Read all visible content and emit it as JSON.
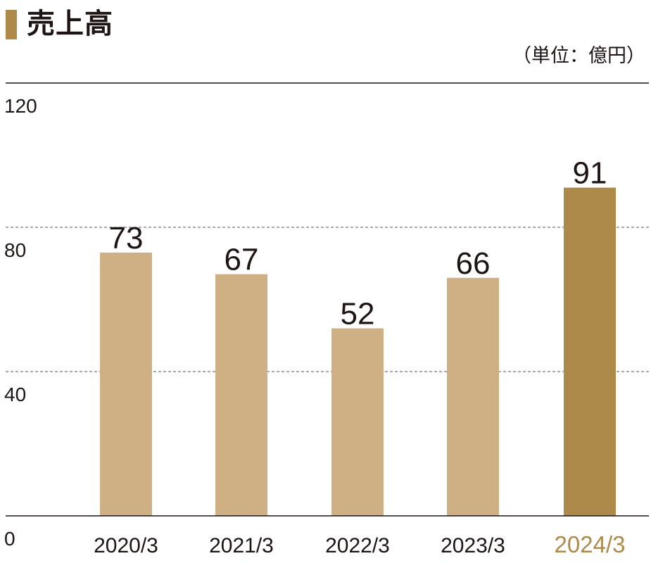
{
  "title": "売上高",
  "unit": "（単位：億円）",
  "colors": {
    "accent": "#ad8a4a",
    "bar": "#cfb084",
    "highlight_bar": "#ad8a4a",
    "text": "#1e1414"
  },
  "chart_data": {
    "type": "bar",
    "categories": [
      "2020/3",
      "2021/3",
      "2022/3",
      "2023/3",
      "2024/3"
    ],
    "values": [
      73,
      67,
      52,
      66,
      91
    ],
    "data_labels": [
      "73",
      "67",
      "52",
      "66",
      "91"
    ],
    "highlight_index": 4,
    "ylim": [
      0,
      120
    ],
    "yticks": [
      0,
      40,
      80,
      120
    ],
    "ytick_labels": [
      "0",
      "40",
      "80",
      "120"
    ],
    "grid": "dashed horizontal at 40 and 80",
    "legend": "none"
  }
}
